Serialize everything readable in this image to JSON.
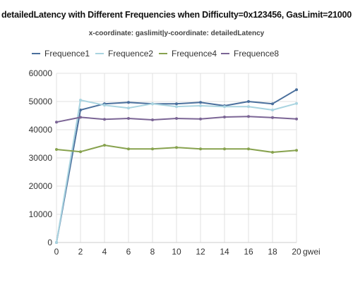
{
  "chart_data": {
    "type": "line",
    "title": "detailedLatency with Different Frequencies when Difficulty=0x123456, GasLimit=21000",
    "subtitle": "x-coordinate: gaslimit|y-coordinate: detailedLatency",
    "x_unit_label": "gwei",
    "x": [
      0,
      2,
      4,
      6,
      8,
      10,
      12,
      14,
      16,
      18,
      20
    ],
    "x_tick_labels": [
      "0",
      "2",
      "4",
      "6",
      "8",
      "10",
      "12",
      "14",
      "16",
      "18",
      "20"
    ],
    "ylim": [
      0,
      60000
    ],
    "y_ticks": [
      0,
      10000,
      20000,
      30000,
      40000,
      50000,
      60000
    ],
    "xlim": [
      0,
      20
    ],
    "grid": true,
    "legend_position": "top",
    "series": [
      {
        "name": "Frequence1",
        "color": "#4a6f9c",
        "values": [
          0,
          47000,
          49200,
          49700,
          49200,
          49200,
          49700,
          48500,
          50000,
          49200,
          54200
        ]
      },
      {
        "name": "Frequence2",
        "color": "#a9d4e0",
        "values": [
          0,
          50500,
          48700,
          47700,
          49200,
          48200,
          48500,
          48200,
          48200,
          47000,
          49300
        ]
      },
      {
        "name": "Frequence4",
        "color": "#87a24e",
        "values": [
          33000,
          32200,
          34500,
          33200,
          33200,
          33700,
          33200,
          33200,
          33200,
          32000,
          32700
        ]
      },
      {
        "name": "Frequence8",
        "color": "#7b6595",
        "values": [
          42700,
          44400,
          43700,
          44000,
          43500,
          44000,
          43800,
          44500,
          44700,
          44300,
          43800
        ]
      }
    ]
  }
}
